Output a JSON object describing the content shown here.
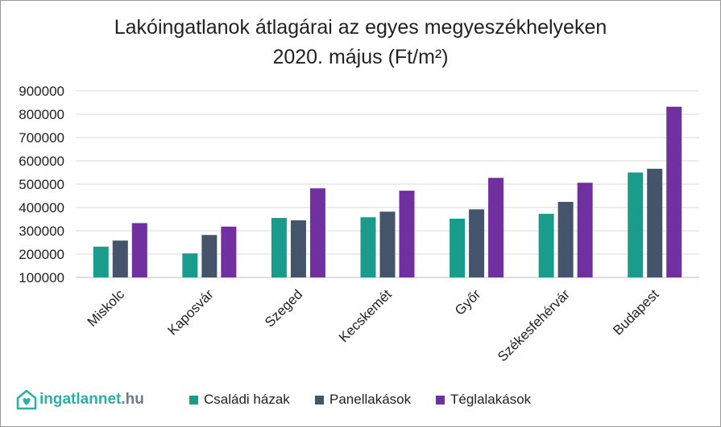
{
  "title_line1": "Lakóingatlanok átlagárai az egyes megyeszékhelyeken",
  "title_line2": "2020. május (Ft/m²)",
  "logo": {
    "name": "ingatlannet",
    "suffix": ".hu",
    "icon": "house-heart-icon"
  },
  "colors": {
    "csaladi": "#1a9c8c",
    "panel": "#44546a",
    "tegla": "#7030a0",
    "grid": "#d9d9d9",
    "axis": "#bfbfbf",
    "text": "#222222"
  },
  "chart_data": {
    "type": "bar",
    "title": "Lakóingatlanok átlagárai az egyes megyeszékhelyeken 2020. május (Ft/m²)",
    "categories": [
      "Miskolc",
      "Kaposvár",
      "Szeged",
      "Kecskemét",
      "Győr",
      "Székesfehérvár",
      "Budapest"
    ],
    "series": [
      {
        "name": "Családi házak",
        "values": [
          232000,
          203000,
          355000,
          358000,
          352000,
          373000,
          550000
        ]
      },
      {
        "name": "Panellakások",
        "values": [
          258000,
          282000,
          345000,
          382000,
          392000,
          424000,
          566000
        ]
      },
      {
        "name": "Téglalakások",
        "values": [
          333000,
          318000,
          482000,
          472000,
          527000,
          506000,
          832000
        ]
      }
    ],
    "yticks": [
      "900000",
      "800000",
      "700000",
      "600000",
      "500000",
      "400000",
      "300000",
      "200000",
      "100000"
    ],
    "ylim": [
      100000,
      900000
    ],
    "grid": true,
    "legend_position": "bottom"
  }
}
